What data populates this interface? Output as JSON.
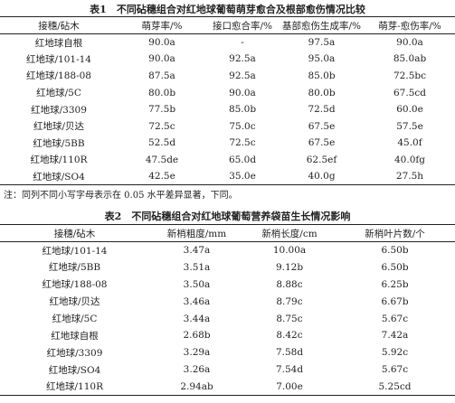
{
  "table1": {
    "title": "表1　不同砧穗组合对红地球葡萄萌芽愈合及根部愈伤情况比较",
    "header": [
      "接穗/砧木",
      "萌芽率/%",
      "接口愈合率/%",
      "基部愈伤生成率/%",
      "萌芽-愈伤率/%"
    ],
    "rows": [
      [
        "红地球自根",
        "90.0a",
        "-",
        "97.5a",
        "90.0a"
      ],
      [
        "红地球/101-14",
        "90.0a",
        "92.5a",
        "95.0a",
        "85.0ab"
      ],
      [
        "红地球/188-08",
        "87.5a",
        "92.5a",
        "85.0b",
        "72.5bc"
      ],
      [
        "红地球/5C",
        "80.0b",
        "90.0a",
        "80.0b",
        "67.5cd"
      ],
      [
        "红地球/3309",
        "77.5b",
        "85.0b",
        "72.5d",
        "60.0e"
      ],
      [
        "红地球/贝达",
        "72.5c",
        "75.0c",
        "67.5e",
        "57.5e"
      ],
      [
        "红地球/5BB",
        "52.5d",
        "72.5c",
        "67.5e",
        "45.0f"
      ],
      [
        "红地球/110R",
        "47.5de",
        "65.0d",
        "62.5ef",
        "40.0fg"
      ],
      [
        "红地球/SO4",
        "42.5e",
        "35.0e",
        "40.0g",
        "27.5h"
      ]
    ],
    "note": "注：同列不同小写字母表示在 0.05 水平差异显著，下同。"
  },
  "table2": {
    "title": "表2　不同砧穗组合对红地球葡萄营养袋苗生长情况影响",
    "header": [
      "接穗/砧木",
      "新梢粗度/mm",
      "新梢长度/cm",
      "新梢叶片数/个"
    ],
    "rows": [
      [
        "红地球/101-14",
        "3.47a",
        "10.00a",
        "6.50b"
      ],
      [
        "红地球/5BB",
        "3.51a",
        "9.12b",
        "6.50b"
      ],
      [
        "红地球/188-08",
        "3.50a",
        "8.88c",
        "6.25b"
      ],
      [
        "红地球/贝达",
        "3.46a",
        "8.79c",
        "6.67b"
      ],
      [
        "红地球/5C",
        "3.44a",
        "8.75c",
        "5.67c"
      ],
      [
        "红地球自根",
        "2.68b",
        "8.42c",
        "7.42a"
      ],
      [
        "红地球/3309",
        "3.29a",
        "7.58d",
        "5.92c"
      ],
      [
        "红地球/SO4",
        "3.26a",
        "7.54d",
        "5.67c"
      ],
      [
        "红地球/110R",
        "2.94ab",
        "7.00e",
        "5.25cd"
      ]
    ]
  }
}
